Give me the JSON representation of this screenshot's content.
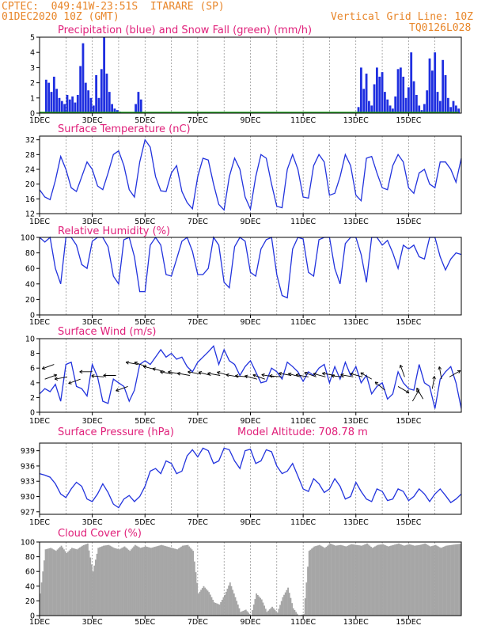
{
  "header": {
    "line1_left": "CPTEC:  049:41W-23:51S  ITARARE (SP)",
    "line2_left": "01DEC2020 10Z (GMT)",
    "line2_right": "Vertical Grid Line: 10Z",
    "line3_right": "TQ0126L028"
  },
  "colors": {
    "title": "#e0207a",
    "header": "#e8862a",
    "line": "#2233dd",
    "precip": "#1f2fe0",
    "snow": "#22aa22",
    "cloud": "#a6a6a6"
  },
  "x_ticks": [
    "1DEC",
    "3DEC",
    "5DEC",
    "7DEC",
    "9DEC",
    "11DEC",
    "13DEC",
    "15DEC"
  ],
  "chart_data": [
    {
      "id": "precip",
      "type": "bar",
      "title": "Precipitation (blue) and Snow Fall (green) (mm/h)",
      "ylim": [
        0,
        5
      ],
      "yticks": [
        0,
        1,
        2,
        3,
        4,
        5
      ],
      "series": [
        {
          "name": "Precipitation",
          "color": "#1f2fe0",
          "x": [
            1.25,
            1.35,
            1.45,
            1.55,
            1.65,
            1.75,
            1.85,
            1.95,
            2.05,
            2.15,
            2.25,
            2.35,
            2.45,
            2.55,
            2.65,
            2.75,
            2.85,
            2.95,
            3.05,
            3.15,
            3.25,
            3.35,
            3.45,
            3.55,
            3.65,
            3.75,
            3.85,
            3.95,
            4.05,
            4.65,
            4.75,
            4.85,
            13.1,
            13.2,
            13.3,
            13.4,
            13.5,
            13.6,
            13.7,
            13.8,
            13.9,
            14.0,
            14.1,
            14.2,
            14.3,
            14.4,
            14.5,
            14.6,
            14.7,
            14.8,
            14.9,
            15.0,
            15.1,
            15.2,
            15.3,
            15.4,
            15.5,
            15.6,
            15.7,
            15.8,
            15.9,
            16.0,
            16.1,
            16.2,
            16.3,
            16.4,
            16.5,
            16.6,
            16.7,
            16.8,
            16.9
          ],
          "values": [
            2.2,
            2.0,
            1.4,
            2.4,
            1.6,
            1.0,
            0.8,
            0.6,
            1.2,
            0.9,
            1.1,
            0.7,
            1.2,
            3.1,
            4.6,
            2.0,
            1.5,
            1.0,
            0.5,
            2.5,
            1.0,
            2.9,
            5.0,
            2.6,
            1.4,
            0.6,
            0.3,
            0.2,
            0.1,
            0.6,
            1.4,
            0.9,
            0.4,
            3.0,
            1.6,
            2.6,
            0.8,
            0.5,
            1.9,
            3.0,
            2.4,
            2.7,
            1.4,
            0.9,
            0.5,
            0.3,
            1.1,
            2.9,
            3.0,
            2.4,
            1.0,
            1.7,
            4.0,
            2.1,
            1.2,
            0.5,
            0.2,
            0.6,
            1.5,
            3.6,
            2.8,
            4.0,
            1.4,
            0.8,
            3.5,
            2.5,
            1.0,
            0.4,
            0.8,
            0.5,
            0.3
          ]
        },
        {
          "name": "Snow Fall",
          "color": "#22aa22",
          "x": [
            1,
            16.9
          ],
          "values": [
            0.05,
            0.05
          ]
        }
      ]
    },
    {
      "id": "temperature",
      "type": "line",
      "title": "Surface Temperature (nC)",
      "ylim": [
        12,
        33
      ],
      "yticks": [
        12,
        16,
        20,
        24,
        28,
        32
      ],
      "x": [
        1.0,
        1.2,
        1.4,
        1.6,
        1.8,
        2.0,
        2.2,
        2.4,
        2.6,
        2.8,
        3.0,
        3.2,
        3.4,
        3.6,
        3.8,
        4.0,
        4.2,
        4.4,
        4.6,
        4.8,
        5.0,
        5.2,
        5.4,
        5.6,
        5.8,
        6.0,
        6.2,
        6.4,
        6.6,
        6.8,
        7.0,
        7.2,
        7.4,
        7.6,
        7.8,
        8.0,
        8.2,
        8.4,
        8.6,
        8.8,
        9.0,
        9.2,
        9.4,
        9.6,
        9.8,
        10.0,
        10.2,
        10.4,
        10.6,
        10.8,
        11.0,
        11.2,
        11.4,
        11.6,
        11.8,
        12.0,
        12.2,
        12.4,
        12.6,
        12.8,
        13.0,
        13.2,
        13.4,
        13.6,
        13.8,
        14.0,
        14.2,
        14.4,
        14.6,
        14.8,
        15.0,
        15.2,
        15.4,
        15.6,
        15.8,
        16.0,
        16.2,
        16.4,
        16.6,
        16.8,
        17.0
      ],
      "values": [
        18.5,
        16.5,
        15.8,
        21,
        27.5,
        24,
        19,
        18,
        22,
        26,
        24,
        19.5,
        18.5,
        23,
        28,
        29,
        25,
        18.5,
        16.5,
        26,
        32,
        30,
        22,
        18.2,
        18,
        23,
        25,
        18,
        15,
        13.3,
        22,
        27,
        26.5,
        20,
        14.5,
        13,
        22,
        27,
        24,
        16.5,
        13.2,
        22,
        28,
        27,
        20,
        14,
        13.6,
        24,
        28,
        24,
        16.5,
        16.2,
        25,
        28,
        26,
        17,
        17.5,
        22,
        28,
        25,
        17,
        15.5,
        27,
        27.5,
        23,
        19,
        18.5,
        25,
        28,
        26,
        19,
        17.5,
        23,
        24,
        20,
        19,
        26,
        26,
        24,
        20.5,
        27
      ]
    },
    {
      "id": "humidity",
      "type": "line",
      "title": "Relative Humidity (%)",
      "ylim": [
        0,
        100
      ],
      "yticks": [
        0,
        20,
        40,
        60,
        80,
        100
      ],
      "x": [
        1.0,
        1.2,
        1.4,
        1.6,
        1.8,
        2.0,
        2.2,
        2.4,
        2.6,
        2.8,
        3.0,
        3.2,
        3.4,
        3.6,
        3.8,
        4.0,
        4.2,
        4.4,
        4.6,
        4.8,
        5.0,
        5.2,
        5.4,
        5.6,
        5.8,
        6.0,
        6.2,
        6.4,
        6.6,
        6.8,
        7.0,
        7.2,
        7.4,
        7.6,
        7.8,
        8.0,
        8.2,
        8.4,
        8.6,
        8.8,
        9.0,
        9.2,
        9.4,
        9.6,
        9.8,
        10.0,
        10.2,
        10.4,
        10.6,
        10.8,
        11.0,
        11.2,
        11.4,
        11.6,
        11.8,
        12.0,
        12.2,
        12.4,
        12.6,
        12.8,
        13.0,
        13.2,
        13.4,
        13.6,
        13.8,
        14.0,
        14.2,
        14.4,
        14.6,
        14.8,
        15.0,
        15.2,
        15.4,
        15.6,
        15.8,
        16.0,
        16.2,
        16.4,
        16.6,
        16.8,
        17.0
      ],
      "values": [
        100,
        94,
        100,
        60,
        40,
        100,
        100,
        90,
        65,
        60,
        95,
        100,
        100,
        88,
        50,
        40,
        97,
        100,
        75,
        30,
        30,
        90,
        100,
        90,
        52,
        50,
        72,
        95,
        100,
        82,
        52,
        52,
        60,
        100,
        90,
        42,
        35,
        88,
        100,
        95,
        55,
        50,
        85,
        97,
        100,
        52,
        25,
        22,
        85,
        100,
        98,
        55,
        50,
        97,
        100,
        100,
        60,
        40,
        92,
        100,
        100,
        78,
        42,
        100,
        100,
        90,
        96,
        80,
        60,
        90,
        85,
        90,
        75,
        72,
        100,
        100,
        75,
        58,
        72,
        80,
        78
      ]
    },
    {
      "id": "wind",
      "type": "line",
      "title": "Surface Wind (m/s)",
      "ylim": [
        0,
        10
      ],
      "yticks": [
        0,
        2,
        4,
        6,
        8,
        10
      ],
      "x": [
        1.0,
        1.2,
        1.4,
        1.6,
        1.8,
        2.0,
        2.2,
        2.4,
        2.6,
        2.8,
        3.0,
        3.2,
        3.4,
        3.6,
        3.8,
        4.0,
        4.2,
        4.4,
        4.6,
        4.8,
        5.0,
        5.2,
        5.4,
        5.6,
        5.8,
        6.0,
        6.2,
        6.4,
        6.6,
        6.8,
        7.0,
        7.2,
        7.4,
        7.6,
        7.8,
        8.0,
        8.2,
        8.4,
        8.6,
        8.8,
        9.0,
        9.2,
        9.4,
        9.6,
        9.8,
        10.0,
        10.2,
        10.4,
        10.6,
        10.8,
        11.0,
        11.2,
        11.4,
        11.6,
        11.8,
        12.0,
        12.2,
        12.4,
        12.6,
        12.8,
        13.0,
        13.2,
        13.4,
        13.6,
        13.8,
        14.0,
        14.2,
        14.4,
        14.6,
        14.8,
        15.0,
        15.2,
        15.4,
        15.6,
        15.8,
        16.0,
        16.2,
        16.4,
        16.6,
        16.8,
        17.0
      ],
      "values": [
        2.5,
        3.2,
        2.8,
        3.8,
        1.5,
        6.5,
        6.8,
        3.5,
        3.2,
        2.2,
        6.5,
        4.8,
        1.5,
        1.2,
        4.5,
        4,
        3.5,
        1.5,
        3,
        6.5,
        7,
        6.5,
        7.5,
        8.5,
        7.5,
        8,
        7.2,
        7.5,
        6.2,
        5.5,
        6.8,
        7.5,
        8.2,
        9,
        6.5,
        8.5,
        7,
        6.5,
        5,
        6.2,
        7,
        5.5,
        4,
        4.2,
        6,
        5.5,
        4.5,
        6.8,
        6.2,
        5.5,
        4.2,
        5.5,
        5,
        6,
        6.5,
        4,
        6.2,
        4.5,
        6.8,
        5,
        6.2,
        4,
        5,
        2.5,
        3.5,
        4,
        1.8,
        2.5,
        5.5,
        4,
        3.2,
        3,
        6.5,
        4,
        3.5,
        0.5,
        4.5,
        5.5,
        6.2,
        4,
        0.5
      ],
      "arrows": {
        "x": [
          1.2,
          1.55,
          2.05,
          2.55,
          3.0,
          3.45,
          3.9,
          4.35,
          4.75,
          5.05,
          5.4,
          5.75,
          6.05,
          6.35,
          6.7,
          7.1,
          7.5,
          7.85,
          8.2,
          8.55,
          8.9,
          9.25,
          9.55,
          9.9,
          10.2,
          10.55,
          10.9,
          11.2,
          11.5,
          11.85,
          12.2,
          12.55,
          12.9,
          13.25,
          13.6,
          14.1,
          14.6,
          14.85,
          15.15,
          15.55,
          15.9,
          16.25,
          16.55
        ],
        "y": [
          4.5,
          6.5,
          4.8,
          4.5,
          5.5,
          4.8,
          5,
          3.5,
          6.5,
          6.2,
          5.8,
          5.5,
          5.2,
          5.2,
          5,
          5.2,
          5,
          5,
          5,
          4.8,
          4.8,
          4.5,
          4.5,
          4.8,
          4.8,
          5,
          4.8,
          4.8,
          4.8,
          4.8,
          5,
          4.8,
          4.8,
          4.8,
          4.5,
          3,
          3.5,
          4.8,
          1.5,
          1.8,
          3.2,
          4.5,
          4.8
        ],
        "ang": [
          20,
          200,
          190,
          200,
          180,
          175,
          180,
          200,
          170,
          160,
          165,
          165,
          170,
          170,
          170,
          170,
          165,
          170,
          165,
          170,
          175,
          165,
          160,
          170,
          175,
          170,
          165,
          170,
          160,
          165,
          170,
          175,
          170,
          165,
          150,
          140,
          330,
          110,
          60,
          120,
          80,
          100,
          30
        ]
      }
    },
    {
      "id": "pressure",
      "type": "line",
      "title": "Surface Pressure (hPa)",
      "subtitle": "Model Altitude: 708.78 m",
      "ylim": [
        926.5,
        940.5
      ],
      "yticks": [
        927,
        930,
        933,
        936,
        939
      ],
      "x": [
        1.0,
        1.2,
        1.4,
        1.6,
        1.8,
        2.0,
        2.2,
        2.4,
        2.6,
        2.8,
        3.0,
        3.2,
        3.4,
        3.6,
        3.8,
        4.0,
        4.2,
        4.4,
        4.6,
        4.8,
        5.0,
        5.2,
        5.4,
        5.6,
        5.8,
        6.0,
        6.2,
        6.4,
        6.6,
        6.8,
        7.0,
        7.2,
        7.4,
        7.6,
        7.8,
        8.0,
        8.2,
        8.4,
        8.6,
        8.8,
        9.0,
        9.2,
        9.4,
        9.6,
        9.8,
        10.0,
        10.2,
        10.4,
        10.6,
        10.8,
        11.0,
        11.2,
        11.4,
        11.6,
        11.8,
        12.0,
        12.2,
        12.4,
        12.6,
        12.8,
        13.0,
        13.2,
        13.4,
        13.6,
        13.8,
        14.0,
        14.2,
        14.4,
        14.6,
        14.8,
        15.0,
        15.2,
        15.4,
        15.6,
        15.8,
        16.0,
        16.2,
        16.4,
        16.6,
        16.8,
        17.0
      ],
      "values": [
        934.5,
        934.2,
        933.8,
        932.5,
        930.5,
        929.8,
        931.5,
        932.8,
        932,
        929.5,
        929,
        930.5,
        932.5,
        930.8,
        928.5,
        927.8,
        929.5,
        930.2,
        929,
        930,
        932,
        935,
        935.5,
        934.5,
        937,
        936.5,
        934.5,
        935,
        938,
        939.2,
        937.8,
        939.5,
        939,
        936.5,
        937,
        939.5,
        939.2,
        937,
        935.5,
        939,
        939.3,
        936.5,
        937,
        939.2,
        938.8,
        936,
        934.5,
        935,
        936.5,
        934,
        931.5,
        931,
        933.5,
        932.5,
        930.8,
        931.5,
        933.5,
        932,
        929.5,
        930,
        932.8,
        931,
        929.5,
        929,
        931.5,
        931,
        929.2,
        929.5,
        931.5,
        931,
        929.2,
        930,
        931.5,
        930.5,
        929,
        930.5,
        931.5,
        930.2,
        928.8,
        929.5,
        930.5
      ]
    },
    {
      "id": "cloud",
      "type": "area",
      "title": "Cloud Cover (%)",
      "ylim": [
        0,
        100
      ],
      "yticks": [
        0,
        20,
        40,
        60,
        80,
        100
      ],
      "x": [
        1.0,
        1.2,
        1.4,
        1.6,
        1.8,
        2.0,
        2.2,
        2.4,
        2.6,
        2.8,
        3.0,
        3.2,
        3.4,
        3.6,
        3.8,
        4.0,
        4.2,
        4.4,
        4.6,
        4.8,
        5.0,
        5.2,
        5.4,
        5.6,
        5.8,
        6.0,
        6.2,
        6.4,
        6.6,
        6.8,
        7.0,
        7.2,
        7.4,
        7.6,
        7.8,
        8.0,
        8.2,
        8.4,
        8.6,
        8.8,
        9.0,
        9.2,
        9.4,
        9.6,
        9.8,
        10.0,
        10.2,
        10.4,
        10.6,
        10.8,
        11.0,
        11.2,
        11.4,
        11.6,
        11.8,
        12.0,
        12.2,
        12.4,
        12.6,
        12.8,
        13.0,
        13.2,
        13.4,
        13.6,
        13.8,
        14.0,
        14.2,
        14.4,
        14.6,
        14.8,
        15.0,
        15.2,
        15.4,
        15.6,
        15.8,
        16.0,
        16.2,
        16.4,
        16.6,
        16.8,
        17.0
      ],
      "values": [
        30,
        90,
        92,
        88,
        95,
        85,
        92,
        90,
        95,
        98,
        60,
        92,
        95,
        96,
        92,
        90,
        94,
        88,
        96,
        92,
        94,
        92,
        94,
        96,
        94,
        92,
        90,
        95,
        96,
        88,
        30,
        40,
        32,
        18,
        15,
        28,
        45,
        25,
        5,
        8,
        0,
        30,
        22,
        5,
        12,
        4,
        25,
        38,
        10,
        0,
        2,
        88,
        94,
        96,
        92,
        98,
        95,
        96,
        94,
        97,
        96,
        95,
        98,
        92,
        96,
        97,
        94,
        96,
        98,
        95,
        97,
        95,
        96,
        98,
        94,
        96,
        92,
        95,
        96,
        97,
        98
      ]
    }
  ]
}
